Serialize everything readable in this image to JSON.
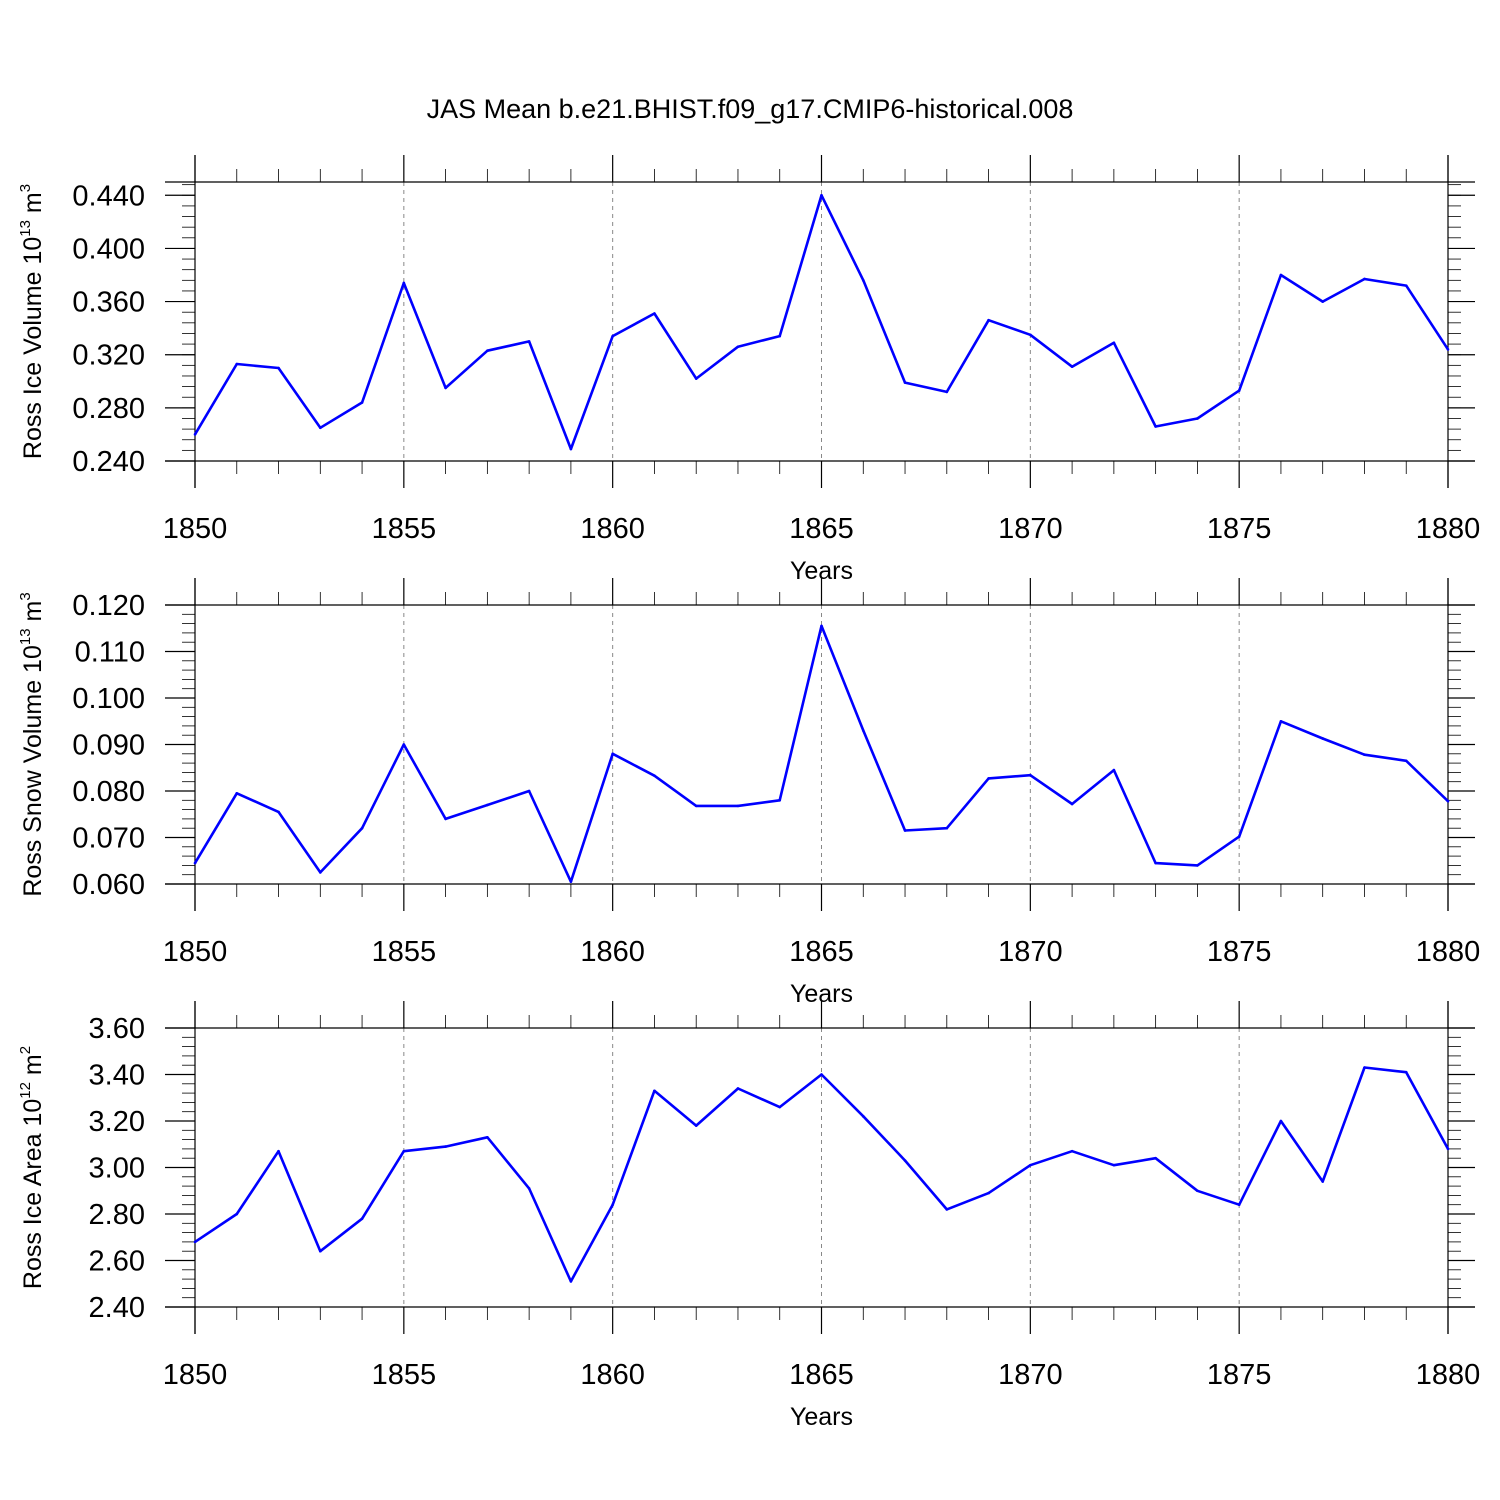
{
  "title": "JAS Mean b.e21.BHIST.f09_g17.CMIP6-historical.008",
  "colors": {
    "series": "#0000ff",
    "axis": "#000000",
    "grid": "#888888"
  },
  "chart_data": [
    {
      "type": "line",
      "xlabel": "Years",
      "ylabel": "Ross Ice Volume 10",
      "ylabel_exp": "13",
      "ylabel_unit": " m",
      "ylabel_unit_exp": "3",
      "xlim": [
        1850,
        1880
      ],
      "ylim": [
        0.24,
        0.45
      ],
      "xticks": [
        1850,
        1855,
        1860,
        1865,
        1870,
        1875,
        1880
      ],
      "xtick_labels": [
        "1850",
        "1855",
        "1860",
        "1865",
        "1870",
        "1875",
        "1880"
      ],
      "yticks": [
        0.24,
        0.28,
        0.32,
        0.36,
        0.4,
        0.44
      ],
      "ytick_labels": [
        "0.240",
        "0.280",
        "0.320",
        "0.360",
        "0.400",
        "0.440"
      ],
      "yminor_step": 0.008,
      "grid": "vertical-dashed",
      "x": [
        1850,
        1851,
        1852,
        1853,
        1854,
        1855,
        1856,
        1857,
        1858,
        1859,
        1860,
        1861,
        1862,
        1863,
        1864,
        1865,
        1866,
        1867,
        1868,
        1869,
        1870,
        1871,
        1872,
        1873,
        1874,
        1875,
        1876,
        1877,
        1878,
        1879,
        1880
      ],
      "values": [
        0.26,
        0.313,
        0.31,
        0.265,
        0.284,
        0.374,
        0.295,
        0.323,
        0.33,
        0.249,
        0.334,
        0.351,
        0.302,
        0.326,
        0.334,
        0.44,
        0.376,
        0.299,
        0.292,
        0.346,
        0.335,
        0.311,
        0.329,
        0.266,
        0.272,
        0.293,
        0.38,
        0.36,
        0.377,
        0.372,
        0.324
      ]
    },
    {
      "type": "line",
      "xlabel": "Years",
      "ylabel": "Ross Snow Volume 10",
      "ylabel_exp": "13",
      "ylabel_unit": " m",
      "ylabel_unit_exp": "3",
      "xlim": [
        1850,
        1880
      ],
      "ylim": [
        0.06,
        0.12
      ],
      "xticks": [
        1850,
        1855,
        1860,
        1865,
        1870,
        1875,
        1880
      ],
      "xtick_labels": [
        "1850",
        "1855",
        "1860",
        "1865",
        "1870",
        "1875",
        "1880"
      ],
      "yticks": [
        0.06,
        0.07,
        0.08,
        0.09,
        0.1,
        0.11,
        0.12
      ],
      "ytick_labels": [
        "0.060",
        "0.070",
        "0.080",
        "0.090",
        "0.100",
        "0.110",
        "0.120"
      ],
      "yminor_step": 0.002,
      "grid": "vertical-dashed",
      "x": [
        1850,
        1851,
        1852,
        1853,
        1854,
        1855,
        1856,
        1857,
        1858,
        1859,
        1860,
        1861,
        1862,
        1863,
        1864,
        1865,
        1866,
        1867,
        1868,
        1869,
        1870,
        1871,
        1872,
        1873,
        1874,
        1875,
        1876,
        1877,
        1878,
        1879,
        1880
      ],
      "values": [
        0.0645,
        0.0795,
        0.0755,
        0.0625,
        0.072,
        0.09,
        0.074,
        0.077,
        0.08,
        0.0605,
        0.088,
        0.0833,
        0.0768,
        0.0768,
        0.078,
        0.1155,
        0.093,
        0.0715,
        0.072,
        0.0827,
        0.0834,
        0.0772,
        0.0845,
        0.0645,
        0.064,
        0.0702,
        0.095,
        0.0913,
        0.0878,
        0.0865,
        0.0778
      ]
    },
    {
      "type": "line",
      "xlabel": "Years",
      "ylabel": "Ross Ice Area 10",
      "ylabel_exp": "12",
      "ylabel_unit": " m",
      "ylabel_unit_exp": "2",
      "xlim": [
        1850,
        1880
      ],
      "ylim": [
        2.4,
        3.6
      ],
      "xticks": [
        1850,
        1855,
        1860,
        1865,
        1870,
        1875,
        1880
      ],
      "xtick_labels": [
        "1850",
        "1855",
        "1860",
        "1865",
        "1870",
        "1875",
        "1880"
      ],
      "yticks": [
        2.4,
        2.6,
        2.8,
        3.0,
        3.2,
        3.4,
        3.6
      ],
      "ytick_labels": [
        "2.40",
        "2.60",
        "2.80",
        "3.00",
        "3.20",
        "3.40",
        "3.60"
      ],
      "yminor_step": 0.04,
      "grid": "vertical-dashed",
      "x": [
        1850,
        1851,
        1852,
        1853,
        1854,
        1855,
        1856,
        1857,
        1858,
        1859,
        1860,
        1861,
        1862,
        1863,
        1864,
        1865,
        1866,
        1867,
        1868,
        1869,
        1870,
        1871,
        1872,
        1873,
        1874,
        1875,
        1876,
        1877,
        1878,
        1879,
        1880
      ],
      "values": [
        2.68,
        2.8,
        3.07,
        2.64,
        2.78,
        3.07,
        3.09,
        3.13,
        2.91,
        2.51,
        2.84,
        3.33,
        3.18,
        3.34,
        3.26,
        3.4,
        3.22,
        3.03,
        2.82,
        2.89,
        3.01,
        3.07,
        3.01,
        3.04,
        2.9,
        2.84,
        3.2,
        2.94,
        3.43,
        3.41,
        3.08
      ]
    }
  ]
}
